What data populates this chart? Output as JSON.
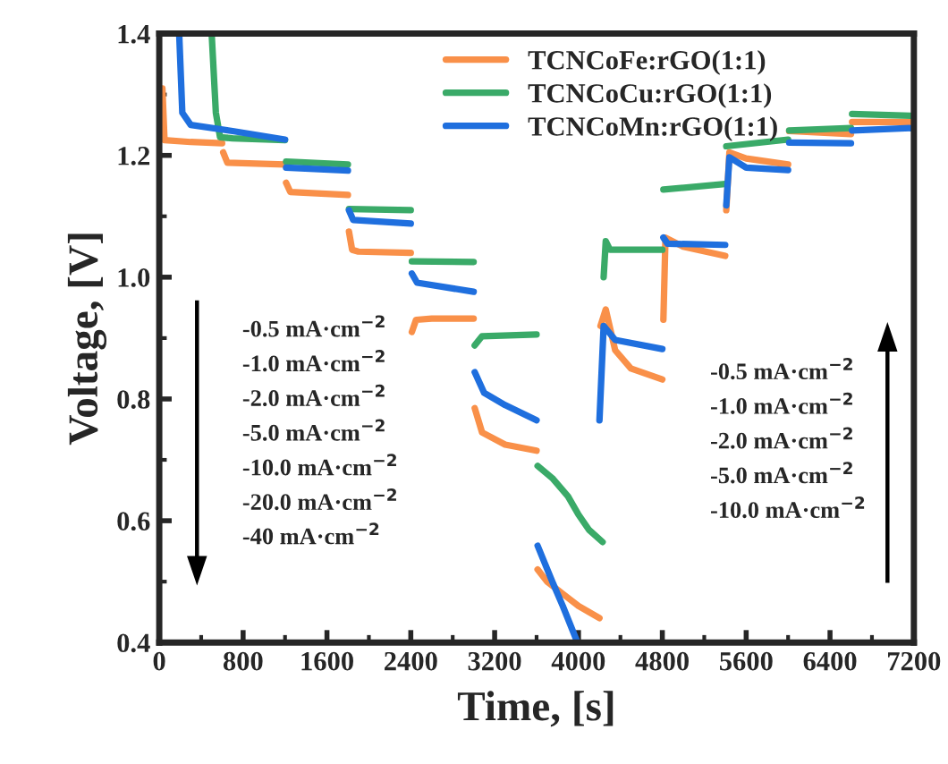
{
  "chart_data": {
    "type": "line",
    "xlabel": "Time, [s]",
    "ylabel": "Voltage, [V]",
    "xlim": [
      0,
      7200
    ],
    "xticks": [
      0,
      800,
      1600,
      2400,
      3200,
      4000,
      4800,
      5600,
      6400,
      7200
    ],
    "ylim": [
      0.4,
      1.4
    ],
    "yticks": [
      0.4,
      0.6,
      0.8,
      {
        "value": 1.0,
        "label": "1.0"
      },
      1.2,
      1.4
    ],
    "legend": "top",
    "grid": false,
    "series": [
      {
        "name": "TCNCoFe:rGO(1:1)",
        "color": "#f99049",
        "x": [
          30,
          50,
          300,
          600,
          605,
          610,
          650,
          1200,
          1205,
          1210,
          1250,
          1800,
          1805,
          1810,
          1840,
          1900,
          2400,
          2405,
          2410,
          2450,
          2600,
          3000,
          3005,
          3010,
          3080,
          3300,
          3600,
          3605,
          3610,
          3700,
          3850,
          4000,
          4200,
          4205,
          4210,
          4260,
          4350,
          4500,
          4800,
          4805,
          4810,
          4830,
          5000,
          5400,
          5405,
          5410,
          5440,
          5600,
          6000,
          6005,
          6010,
          6600,
          6605,
          6610,
          7200
        ],
        "values": [
          1.31,
          1.225,
          1.222,
          1.22,
          null,
          1.205,
          1.188,
          1.185,
          null,
          1.155,
          1.14,
          1.135,
          null,
          1.075,
          1.045,
          1.042,
          1.04,
          null,
          0.91,
          0.93,
          0.932,
          0.932,
          null,
          0.785,
          0.745,
          0.725,
          0.715,
          null,
          0.52,
          0.5,
          0.48,
          0.46,
          0.44,
          null,
          0.92,
          0.947,
          0.88,
          0.85,
          0.832,
          null,
          0.93,
          1.065,
          1.05,
          1.035,
          null,
          1.11,
          1.205,
          1.195,
          1.185,
          null,
          1.24,
          1.235,
          null,
          1.255,
          1.255
        ]
      },
      {
        "name": "TCNCoCu:rGO(1:1)",
        "color": "#3aaa68",
        "x": [
          500,
          540,
          580,
          700,
          1200,
          1205,
          1210,
          1800,
          1805,
          1810,
          2400,
          2405,
          2410,
          3000,
          3005,
          3010,
          3080,
          3600,
          3605,
          3610,
          3750,
          3900,
          4000,
          4100,
          4230,
          4235,
          4240,
          4260,
          4300,
          4800,
          4805,
          4810,
          5400,
          5405,
          5410,
          6000,
          6005,
          6010,
          6600,
          6605,
          6610,
          7200
        ],
        "values": [
          1.4,
          1.27,
          1.23,
          1.228,
          1.225,
          null,
          1.19,
          1.185,
          null,
          1.112,
          1.11,
          null,
          1.026,
          1.025,
          null,
          0.888,
          0.903,
          0.906,
          null,
          0.69,
          0.67,
          0.64,
          0.61,
          0.585,
          0.565,
          null,
          1.0,
          1.059,
          1.045,
          1.045,
          null,
          1.144,
          1.153,
          null,
          1.215,
          1.226,
          null,
          1.241,
          1.245,
          null,
          1.268,
          1.265
        ]
      },
      {
        "name": "TCNCoMn:rGO(1:1)",
        "color": "#1f6fde",
        "x": [
          190,
          220,
          300,
          700,
          1200,
          1205,
          1210,
          1800,
          1805,
          1810,
          1850,
          2400,
          2405,
          2410,
          2460,
          3000,
          3005,
          3010,
          3100,
          3300,
          3600,
          3605,
          3610,
          3750,
          3850,
          3990,
          3995,
          4200,
          4240,
          4350,
          4800,
          4805,
          4810,
          4850,
          5400,
          5405,
          5410,
          5440,
          5600,
          6000,
          6005,
          6010,
          6600,
          6605,
          6610,
          7200
        ],
        "values": [
          1.4,
          1.27,
          1.25,
          1.24,
          1.226,
          null,
          1.18,
          1.175,
          null,
          1.11,
          1.094,
          1.088,
          null,
          1.006,
          0.991,
          0.976,
          null,
          0.844,
          0.81,
          0.79,
          0.765,
          null,
          0.559,
          0.5,
          0.46,
          0.4,
          null,
          0.765,
          0.92,
          0.897,
          0.882,
          null,
          1.065,
          1.055,
          1.053,
          null,
          1.118,
          1.197,
          1.18,
          1.176,
          null,
          1.221,
          1.22,
          null,
          1.241,
          1.245
        ]
      }
    ],
    "annotations": [
      "-0.5 mA·cm$^{−2}$\n-1.0 mA·cm$^{−2}$\n-2.0 mA·cm$^{−2}$\n-5.0 mA·cm$^{−2}$\n-10.0 mA·cm$^{−2}$\n-20.0 mA·cm$^{−2}$\n-40 mA·cm$^{−2}$",
      "-0.5 mA·cm$^{−2}$\n-1.0 mA·cm$^{−2}$\n-2.0 mA·cm$^{−2}$\n-5.0 mA·cm$^{−2}$\n-10.0 mA·cm$^{−2}$"
    ]
  }
}
